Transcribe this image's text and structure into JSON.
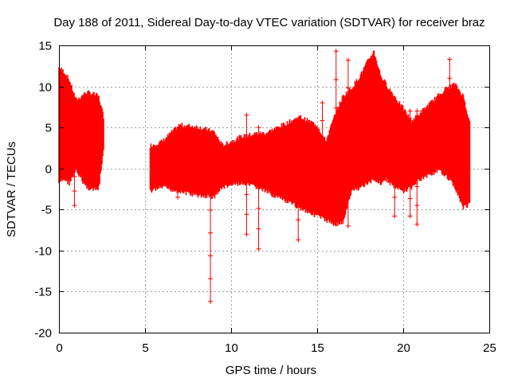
{
  "chart_data": {
    "type": "scatter",
    "title": "Day 188 of 2011, Sidereal Day-to-day VTEC variation (SDTVAR) for receiver braz",
    "xlabel": "GPS time / hours",
    "ylabel": "SDTVAR / TECUs",
    "xlim": [
      0,
      25
    ],
    "ylim": [
      -20,
      15
    ],
    "x_ticks": [
      0,
      5,
      10,
      15,
      20,
      25
    ],
    "y_ticks": [
      -20,
      -15,
      -10,
      -5,
      0,
      5,
      10,
      15
    ],
    "grid": true,
    "series": [
      {
        "name": "SDTVAR",
        "color": "#ff0000",
        "marker": "+",
        "envelope": [
          {
            "x": 0.0,
            "low": -1.5,
            "high": 12.0
          },
          {
            "x": 0.3,
            "low": -1.0,
            "high": 11.5
          },
          {
            "x": 0.6,
            "low": -1.5,
            "high": 10.5
          },
          {
            "x": 1.0,
            "low": 0.0,
            "high": 8.0
          },
          {
            "x": 1.3,
            "low": -1.0,
            "high": 8.5
          },
          {
            "x": 1.6,
            "low": -2.0,
            "high": 9.0
          },
          {
            "x": 2.0,
            "low": -2.3,
            "high": 8.8
          },
          {
            "x": 2.3,
            "low": -2.3,
            "high": 8.5
          },
          {
            "x": 2.6,
            "low": 2.5,
            "high": 6.0
          },
          {
            "x": 5.3,
            "low": -2.5,
            "high": 2.5
          },
          {
            "x": 6.0,
            "low": -2.0,
            "high": 3.0
          },
          {
            "x": 7.0,
            "low": -2.5,
            "high": 5.0
          },
          {
            "x": 8.0,
            "low": -3.0,
            "high": 4.8
          },
          {
            "x": 9.0,
            "low": -3.2,
            "high": 4.2
          },
          {
            "x": 9.5,
            "low": -2.0,
            "high": 2.5
          },
          {
            "x": 10.5,
            "low": -1.5,
            "high": 3.5
          },
          {
            "x": 11.5,
            "low": -2.0,
            "high": 4.0
          },
          {
            "x": 12.0,
            "low": -2.5,
            "high": 4.0
          },
          {
            "x": 13.0,
            "low": -3.5,
            "high": 5.0
          },
          {
            "x": 14.0,
            "low": -4.5,
            "high": 6.0
          },
          {
            "x": 15.0,
            "low": -5.5,
            "high": 5.0
          },
          {
            "x": 15.5,
            "low": -6.0,
            "high": 3.0
          },
          {
            "x": 16.0,
            "low": -6.5,
            "high": 6.0
          },
          {
            "x": 16.5,
            "low": -6.3,
            "high": 8.5
          },
          {
            "x": 17.0,
            "low": -2.5,
            "high": 9.5
          },
          {
            "x": 17.5,
            "low": -2.0,
            "high": 11.0
          },
          {
            "x": 18.0,
            "low": -1.5,
            "high": 13.0
          },
          {
            "x": 18.3,
            "low": -1.0,
            "high": 14.0
          },
          {
            "x": 18.7,
            "low": -1.5,
            "high": 11.0
          },
          {
            "x": 19.0,
            "low": -1.0,
            "high": 10.0
          },
          {
            "x": 19.5,
            "low": -2.0,
            "high": 8.5
          },
          {
            "x": 20.0,
            "low": -2.5,
            "high": 7.0
          },
          {
            "x": 20.5,
            "low": -2.0,
            "high": 5.5
          },
          {
            "x": 21.0,
            "low": -1.0,
            "high": 6.5
          },
          {
            "x": 21.5,
            "low": -0.5,
            "high": 7.5
          },
          {
            "x": 22.0,
            "low": 0.0,
            "high": 8.5
          },
          {
            "x": 22.5,
            "low": -0.5,
            "high": 9.5
          },
          {
            "x": 23.0,
            "low": -2.0,
            "high": 10.0
          },
          {
            "x": 23.5,
            "low": -4.5,
            "high": 8.5
          },
          {
            "x": 23.9,
            "low": -4.0,
            "high": 5.0
          }
        ],
        "spikes": [
          {
            "x": 0.9,
            "low": -4.5,
            "high": 6.0
          },
          {
            "x": 6.9,
            "low": -3.5,
            "high": 4.0
          },
          {
            "x": 8.8,
            "low": -16.2,
            "high": 0.5
          },
          {
            "x": 10.9,
            "low": -8.0,
            "high": 6.5
          },
          {
            "x": 11.6,
            "low": -9.8,
            "high": 5.0
          },
          {
            "x": 13.9,
            "low": -8.7,
            "high": 6.0
          },
          {
            "x": 15.3,
            "low": -5.0,
            "high": 8.0
          },
          {
            "x": 16.1,
            "low": -6.5,
            "high": 14.3
          },
          {
            "x": 16.8,
            "low": -7.0,
            "high": 13.2
          },
          {
            "x": 19.5,
            "low": -5.8,
            "high": 8.0
          },
          {
            "x": 20.4,
            "low": -5.8,
            "high": 7.0
          },
          {
            "x": 20.8,
            "low": -6.8,
            "high": 7.0
          },
          {
            "x": 22.7,
            "low": -0.5,
            "high": 13.3
          }
        ]
      }
    ]
  }
}
